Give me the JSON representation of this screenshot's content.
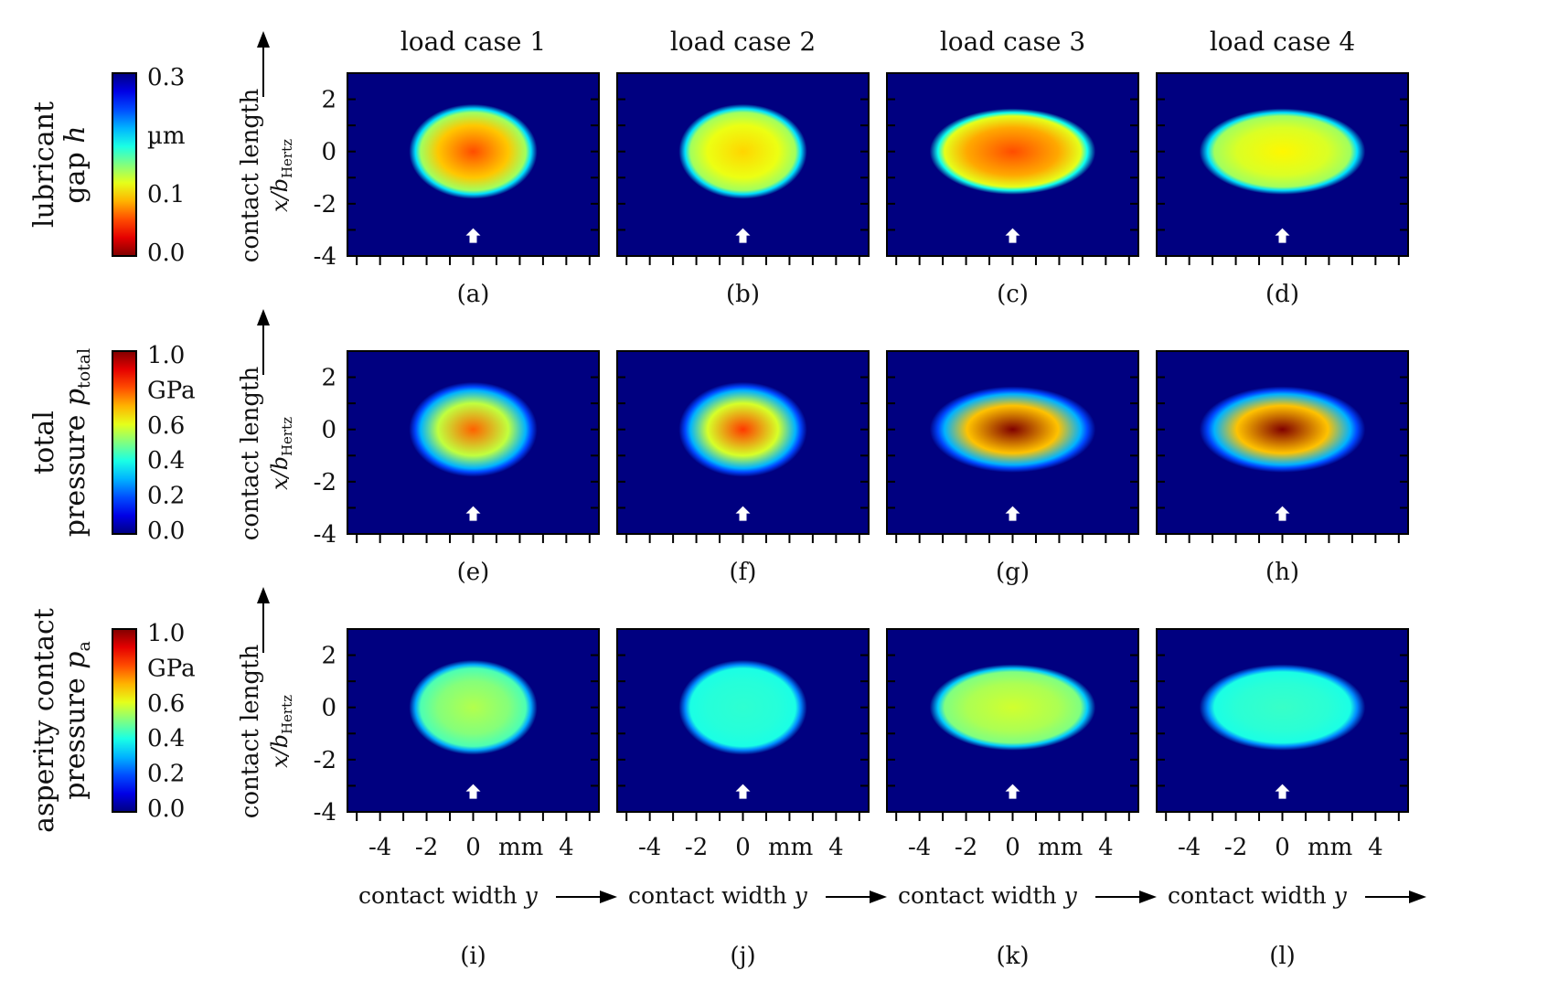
{
  "chart_data": {
    "type": "heatmap",
    "columns": [
      "load case 1",
      "load case 2",
      "load case 3",
      "load case 4"
    ],
    "xlabel": "contact width",
    "xlabel_var": "y",
    "x_tick_labels": [
      "-4",
      "-2",
      "0",
      "mm",
      "4"
    ],
    "x_ticks": [
      -4,
      -2,
      0,
      4
    ],
    "x_unit": "mm",
    "xlim": [
      -5.4,
      5.4
    ],
    "ylabel": "contact length",
    "ylabel_var": "x/b",
    "ylabel_sub": "Hertz",
    "y_tick_labels": [
      "2",
      "0",
      "-2",
      "-4"
    ],
    "y_ticks": [
      2,
      0,
      -2,
      -4
    ],
    "ylim": [
      -4,
      3
    ],
    "flow_arrow": {
      "x": 0,
      "y": -3.25
    },
    "rows": [
      {
        "quantity": "lubricant gap",
        "quantity_lines": [
          "lubricant",
          "gap h"
        ],
        "colorbar": {
          "ticks": [
            "0.3",
            "µm",
            "0.1",
            "0.0"
          ],
          "range": [
            0.0,
            0.3
          ],
          "colormap": "jet_reversed"
        },
        "panels": [
          {
            "label": "(a)",
            "half_width": 2.55,
            "half_length": 1.65,
            "value_center": 0.06,
            "value_edge": 0.14,
            "value_outside": 0.3
          },
          {
            "label": "(b)",
            "half_width": 2.55,
            "half_length": 1.65,
            "value_center": 0.1,
            "value_edge": 0.14,
            "value_outside": 0.3
          },
          {
            "label": "(c)",
            "half_width": 3.3,
            "half_length": 1.5,
            "value_center": 0.06,
            "value_edge": 0.12,
            "value_outside": 0.3
          },
          {
            "label": "(d)",
            "half_width": 3.3,
            "half_length": 1.5,
            "value_center": 0.11,
            "value_edge": 0.14,
            "value_outside": 0.3
          }
        ]
      },
      {
        "quantity": "total pressure",
        "quantity_lines": [
          "total",
          "pressure p_total"
        ],
        "colorbar": {
          "ticks": [
            "1.0",
            "GPa",
            "0.6",
            "0.4",
            "0.2",
            "0.0"
          ],
          "range": [
            0.0,
            1.0
          ],
          "colormap": "jet"
        },
        "panels": [
          {
            "label": "(e)",
            "half_width": 2.55,
            "half_length": 1.65,
            "value_center": 0.78,
            "value_edge": 0.3,
            "value_outside": 0.0
          },
          {
            "label": "(f)",
            "half_width": 2.55,
            "half_length": 1.65,
            "value_center": 0.82,
            "value_edge": 0.3,
            "value_outside": 0.0
          },
          {
            "label": "(g)",
            "half_width": 3.3,
            "half_length": 1.5,
            "value_center": 1.0,
            "value_edge": 0.3,
            "value_outside": 0.0
          },
          {
            "label": "(h)",
            "half_width": 3.3,
            "half_length": 1.5,
            "value_center": 1.0,
            "value_edge": 0.3,
            "value_outside": 0.0
          }
        ]
      },
      {
        "quantity": "asperity contact pressure",
        "quantity_lines": [
          "asperity contact",
          "pressure p_a"
        ],
        "colorbar": {
          "ticks": [
            "1.0",
            "GPa",
            "0.6",
            "0.4",
            "0.2",
            "0.0"
          ],
          "range": [
            0.0,
            1.0
          ],
          "colormap": "jet"
        },
        "panels": [
          {
            "label": "(i)",
            "half_width": 2.55,
            "half_length": 1.65,
            "value_center": 0.55,
            "value_edge": 0.45,
            "value_outside": 0.0
          },
          {
            "label": "(j)",
            "half_width": 2.55,
            "half_length": 1.65,
            "value_center": 0.42,
            "value_edge": 0.4,
            "value_outside": 0.0
          },
          {
            "label": "(k)",
            "half_width": 3.3,
            "half_length": 1.5,
            "value_center": 0.58,
            "value_edge": 0.5,
            "value_outside": 0.0
          },
          {
            "label": "(l)",
            "half_width": 3.3,
            "half_length": 1.5,
            "value_center": 0.43,
            "value_edge": 0.4,
            "value_outside": 0.0
          }
        ]
      }
    ]
  }
}
